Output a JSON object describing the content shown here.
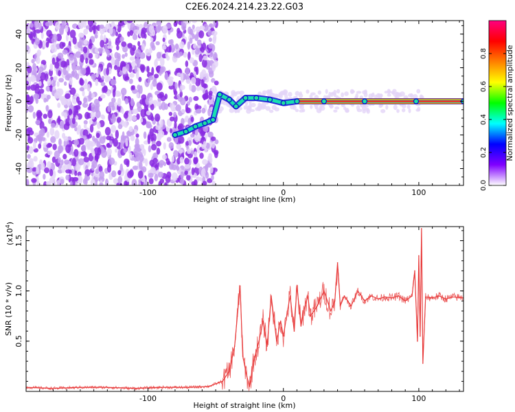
{
  "title": "C2E6.2024.214.23.22.G03",
  "chart_data": [
    {
      "type": "heatmap",
      "xlabel": "Height of straight line (km)",
      "ylabel": "Frequency (Hz)",
      "xlim": [
        -190,
        133
      ],
      "ylim": [
        -50,
        48
      ],
      "xticks": [
        -100,
        0,
        100
      ],
      "yticks": [
        -40,
        -20,
        0,
        20,
        40
      ],
      "colorbar": {
        "label": "Normalized spectral amplitude",
        "range": [
          0,
          1
        ],
        "ticks": [
          0.0,
          0.2,
          0.4,
          0.6,
          0.8
        ],
        "colors": [
          "#ffffff",
          "#8000ff",
          "#0000ff",
          "#00ffff",
          "#00ff00",
          "#ffff00",
          "#ff8000",
          "#ff0000",
          "#ff0080"
        ]
      },
      "series": [
        {
          "values": [
            {
              "x": -80,
              "y": -20
            },
            {
              "x": -72,
              "y": -18
            },
            {
              "x": -65,
              "y": -15
            },
            {
              "x": -58,
              "y": -13
            },
            {
              "x": -52,
              "y": -11
            },
            {
              "x": -47,
              "y": 4
            },
            {
              "x": -40,
              "y": 1
            },
            {
              "x": -35,
              "y": -3
            },
            {
              "x": -28,
              "y": 2
            },
            {
              "x": -20,
              "y": 2
            },
            {
              "x": -10,
              "y": 1
            },
            {
              "x": 0,
              "y": -1
            },
            {
              "x": 10,
              "y": 0
            },
            {
              "x": 30,
              "y": 0
            },
            {
              "x": 60,
              "y": 0
            },
            {
              "x": 98,
              "y": 0
            },
            {
              "x": 133,
              "y": 0
            }
          ]
        }
      ]
    },
    {
      "type": "line",
      "xlabel": "Height of straight line (km)",
      "ylabel": "SNR (10 * v/v)",
      "yscale_label": "(x10",
      "yscale_exp": "4",
      "xlim": [
        -190,
        133
      ],
      "ylim": [
        0,
        1.64
      ],
      "xticks": [
        -100,
        0,
        100
      ],
      "yticks": [
        0.5,
        1.0,
        1.5
      ],
      "ytick_labels": [
        "0.5",
        "1.0",
        "1.5"
      ],
      "color": "#e83a3a",
      "series": [
        {
          "x": [
            -190,
            -170,
            -150,
            -130,
            -110,
            -90,
            -70,
            -55,
            -45,
            -40,
            -36,
            -34,
            -32,
            -30,
            -27,
            -25,
            -22,
            -18,
            -15,
            -12,
            -9,
            -5,
            -2,
            0,
            3,
            5,
            8,
            10,
            13,
            15,
            18,
            20,
            25,
            30,
            35,
            38,
            40,
            42,
            45,
            50,
            55,
            60,
            65,
            70,
            75,
            80,
            85,
            90,
            95,
            97,
            99,
            100,
            101,
            102,
            103,
            105,
            110,
            115,
            120,
            125,
            133
          ],
          "y": [
            0.04,
            0.03,
            0.04,
            0.04,
            0.03,
            0.04,
            0.04,
            0.05,
            0.1,
            0.2,
            0.45,
            0.75,
            1.05,
            0.35,
            0.15,
            0.05,
            0.3,
            0.5,
            0.7,
            0.45,
            0.95,
            0.5,
            0.7,
            0.55,
            0.8,
            0.95,
            0.6,
            1.05,
            0.65,
            0.8,
            0.95,
            0.75,
            0.85,
            1.0,
            0.8,
            0.9,
            1.28,
            0.85,
            0.95,
            0.85,
            1.0,
            0.9,
            0.95,
            0.92,
            0.94,
            0.93,
            0.95,
            0.9,
            0.95,
            1.2,
            0.5,
            1.35,
            0.55,
            1.62,
            0.28,
            0.94,
            0.93,
            0.95,
            0.92,
            0.94,
            0.93
          ]
        }
      ]
    }
  ]
}
